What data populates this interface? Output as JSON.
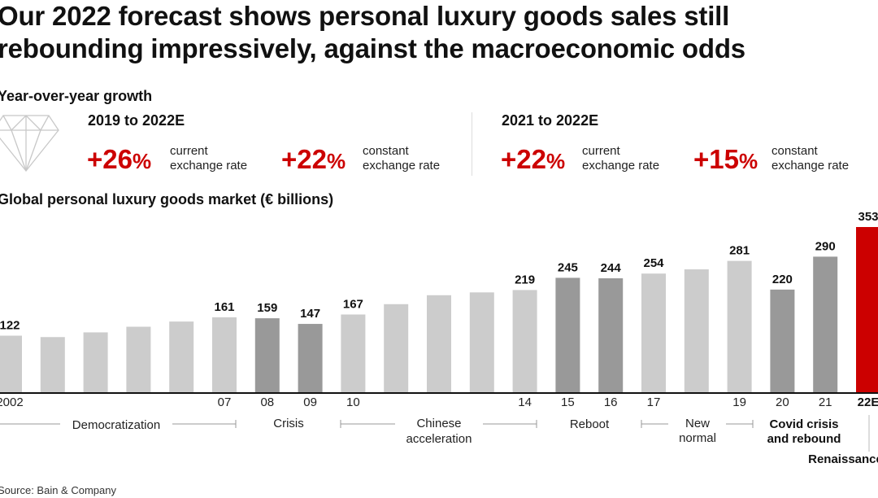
{
  "title_line1": "Our 2022 forecast shows personal luxury goods sales still",
  "title_line2": "rebounding impressively, against the macroeconomic odds",
  "growth": {
    "heading": "Year-over-year growth",
    "icon": "diamond-icon",
    "periods": [
      {
        "label": "2019 to 2022E",
        "items": [
          {
            "value": "+26",
            "unit": "%",
            "desc1": "current",
            "desc2": "exchange rate"
          },
          {
            "value": "+22",
            "unit": "%",
            "desc1": "constant",
            "desc2": "exchange rate"
          }
        ]
      },
      {
        "label": "2021 to 2022E",
        "items": [
          {
            "value": "+22",
            "unit": "%",
            "desc1": "current",
            "desc2": "exchange rate"
          },
          {
            "value": "+15",
            "unit": "%",
            "desc1": "constant",
            "desc2": "exchange rate"
          }
        ]
      }
    ]
  },
  "chart_data": {
    "type": "bar",
    "title": "Global personal luxury goods market (€ billions)",
    "categories": [
      "2002",
      "2003",
      "2004",
      "2005",
      "2006",
      "2007",
      "2008",
      "2009",
      "2010",
      "2011",
      "2012",
      "2013",
      "2014",
      "2015",
      "2016",
      "2017",
      "2018",
      "2019",
      "2020",
      "2021",
      "2022E"
    ],
    "tick_labels": [
      "2002",
      "",
      "",
      "",
      "",
      "07",
      "08",
      "09",
      "10",
      "",
      "",
      "",
      "14",
      "15",
      "16",
      "17",
      "",
      "19",
      "20",
      "21",
      "22E"
    ],
    "values": [
      122,
      119,
      129,
      141,
      152,
      161,
      159,
      147,
      167,
      189,
      208,
      214,
      219,
      245,
      244,
      254,
      263,
      281,
      220,
      290,
      353
    ],
    "data_labels": [
      "122",
      "",
      "",
      "",
      "",
      "161",
      "159",
      "147",
      "167",
      "",
      "",
      "",
      "219",
      "245",
      "244",
      "254",
      "",
      "281",
      "220",
      "290",
      "353"
    ],
    "highlight": [
      "light",
      "light",
      "light",
      "light",
      "light",
      "light",
      "dark",
      "dark",
      "light",
      "light",
      "light",
      "light",
      "light",
      "dark",
      "dark",
      "light",
      "light",
      "light",
      "dark",
      "dark",
      "red"
    ],
    "colors": {
      "light": "#cccccc",
      "dark": "#999999",
      "red": "#cc0000"
    },
    "ylim": [
      0,
      353
    ],
    "grid": false,
    "phases": [
      {
        "lines": [
          "Democratization"
        ],
        "bold": false
      },
      {
        "lines": [
          "Crisis"
        ],
        "bold": false
      },
      {
        "lines": [
          "Chinese",
          "acceleration"
        ],
        "bold": false
      },
      {
        "lines": [
          "Reboot"
        ],
        "bold": false
      },
      {
        "lines": [
          "New",
          "normal"
        ],
        "bold": false
      },
      {
        "lines": [
          "Covid crisis",
          "and rebound"
        ],
        "bold": true
      },
      {
        "lines": [
          "Renaissance"
        ],
        "bold": true
      }
    ]
  },
  "source": "Source: Bain & Company"
}
